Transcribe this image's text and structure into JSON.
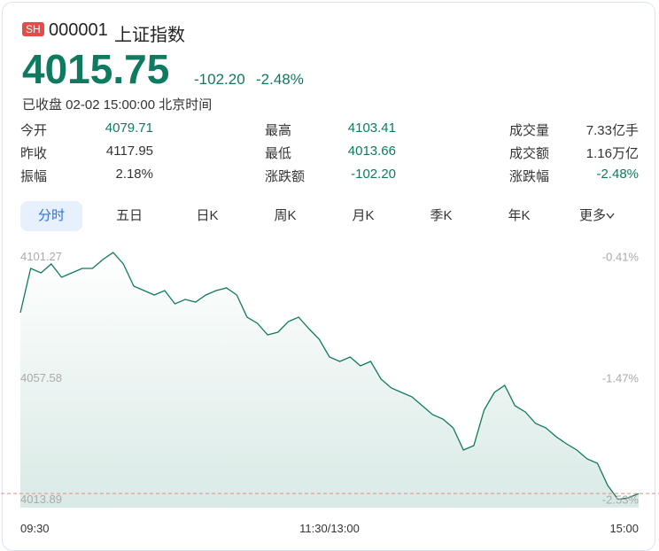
{
  "header": {
    "market": "SH",
    "code": "000001",
    "name": "上证指数",
    "price": "4015.75",
    "change": "-102.20",
    "change_pct": "-2.48%",
    "status": "已收盘 02-02 15:00:00 北京时间"
  },
  "stats": [
    [
      {
        "label": "今开",
        "value": "4079.71"
      },
      {
        "label": "最高",
        "value": "4103.41"
      },
      {
        "label": "成交量",
        "value": "7.33亿手"
      }
    ],
    [
      {
        "label": "昨收",
        "value": "4117.95"
      },
      {
        "label": "最低",
        "value": "4013.66"
      },
      {
        "label": "成交额",
        "value": "1.16万亿"
      }
    ],
    [
      {
        "label": "振幅",
        "value": "2.18%"
      },
      {
        "label": "涨跌额",
        "value": "-102.20"
      },
      {
        "label": "涨跌幅",
        "value": "-2.48%"
      }
    ]
  ],
  "tabs": [
    "分时",
    "五日",
    "日K",
    "周K",
    "月K",
    "季K",
    "年K",
    "更多"
  ],
  "chart_data": {
    "type": "line",
    "categories": [
      "09:30",
      null,
      null,
      null,
      null,
      null,
      null,
      null,
      null,
      null,
      null,
      null,
      null,
      null,
      null,
      null,
      null,
      null,
      null,
      null,
      null,
      null,
      null,
      null,
      null,
      null,
      null,
      null,
      null,
      null,
      "11:30/13:00",
      null,
      null,
      null,
      null,
      null,
      null,
      null,
      null,
      null,
      null,
      null,
      null,
      null,
      null,
      null,
      null,
      null,
      null,
      null,
      null,
      null,
      null,
      null,
      null,
      null,
      null,
      null,
      null,
      null,
      "15:00"
    ],
    "series": [
      {
        "name": "上证指数",
        "color": "#0f7a5e",
        "values": [
          4080.86,
          4096.81,
          4095.21,
          4098.4,
          4093.62,
          4095.21,
          4096.81,
          4096.81,
          4099.99,
          4102.55,
          4098.4,
          4090.43,
          4088.83,
          4087.24,
          4088.83,
          4084.05,
          4085.64,
          4084.69,
          4087.24,
          4088.83,
          4089.79,
          4087.24,
          4079.27,
          4077.03,
          4072.89,
          4073.84,
          4077.67,
          4079.27,
          4075.12,
          4071.29,
          4064.92,
          4063.32,
          4064.92,
          4061.73,
          4063.32,
          4056.94,
          4053.75,
          4052.16,
          4050.56,
          4047.38,
          4044.19,
          4042.59,
          4039.4,
          4031.43,
          4033.03,
          4045.78,
          4052.16,
          4054.71,
          4047.38,
          4045.14,
          4041.0,
          4039.4,
          4036.21,
          4033.66,
          4031.43,
          4028.24,
          4026.65,
          4018.67,
          4013.66,
          4014.2,
          4015.75
        ]
      }
    ],
    "ylim": [
      4010.7,
      4106.37
    ],
    "yticks": [
      4013.89,
      4057.58,
      4101.27
    ],
    "y2lim": [
      -2.604,
      -0.281
    ],
    "y2ticks": [
      {
        "value": -2.53,
        "label": "-2.53%"
      },
      {
        "value": -1.47,
        "label": "-1.47%"
      },
      {
        "value": -0.41,
        "label": "-0.41%"
      }
    ],
    "grid": false
  }
}
